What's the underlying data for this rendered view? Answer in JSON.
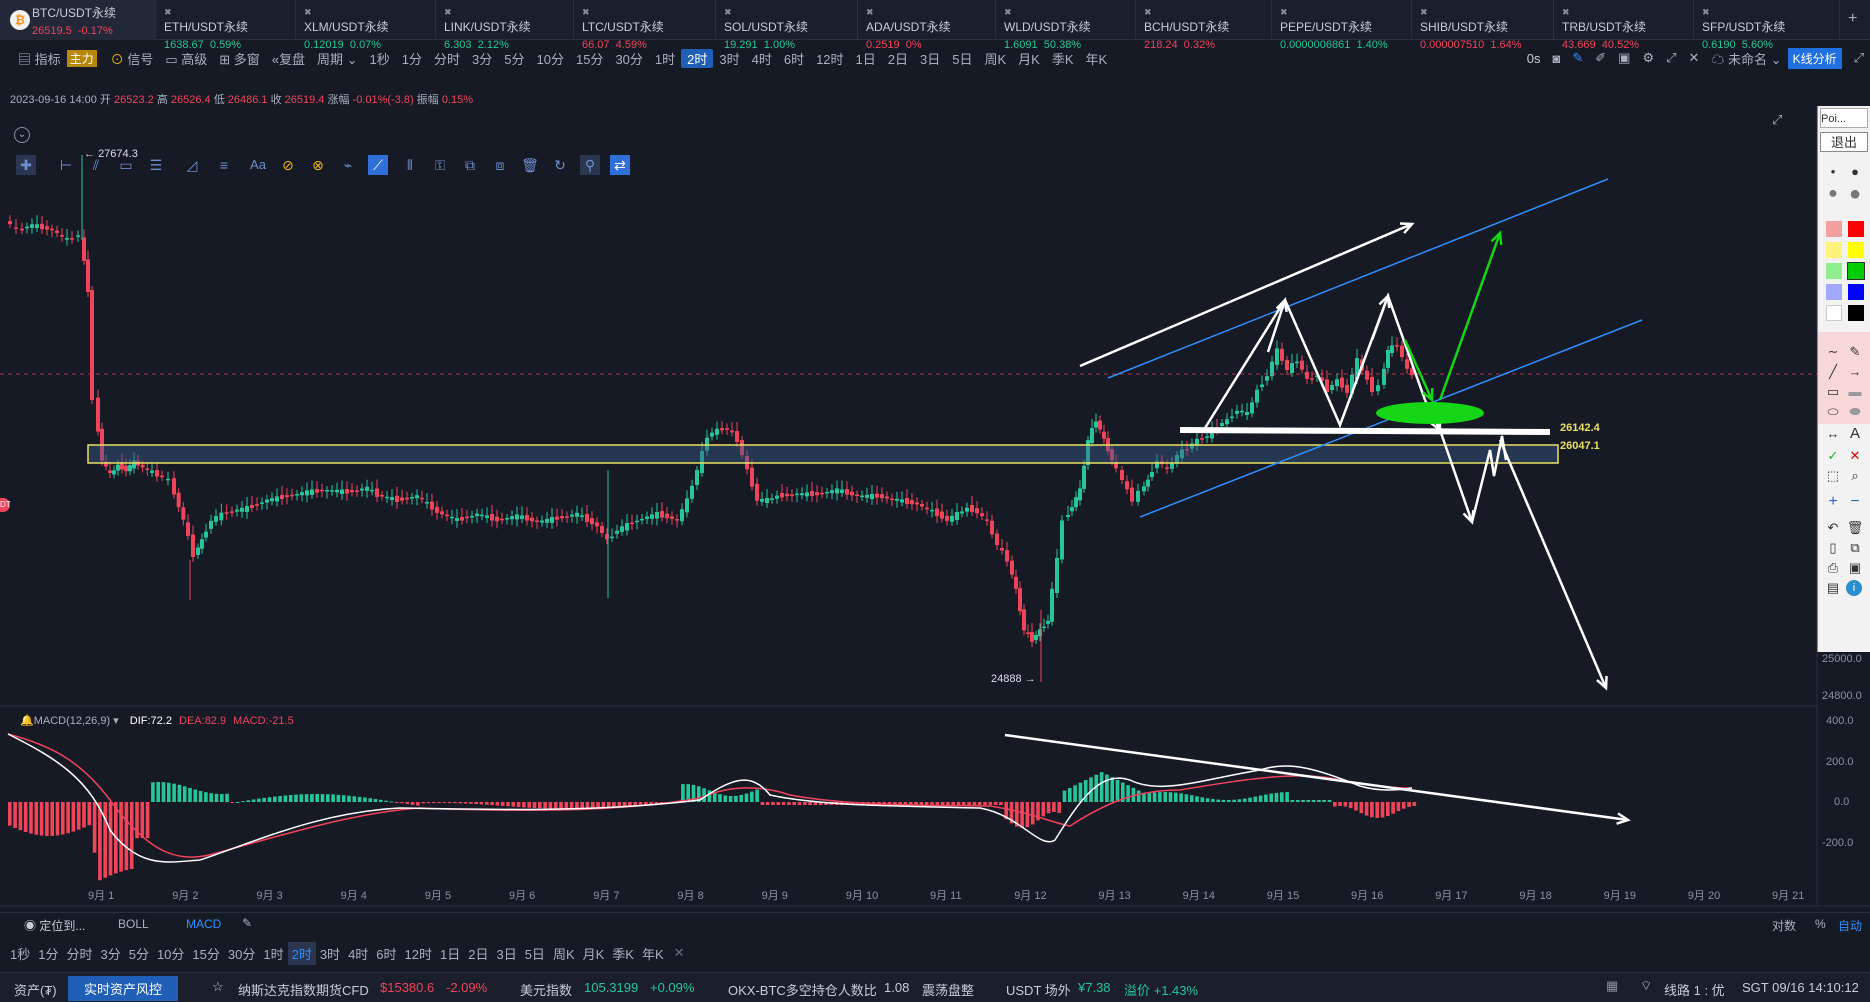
{
  "tickers": [
    {
      "sym": "BTC/USDT永续",
      "price": "26519.5",
      "chg": "-0.17%",
      "dir": "dn"
    },
    {
      "sym": "ETH/USDT永续",
      "price": "1638.67",
      "chg": "0.59%",
      "dir": "up"
    },
    {
      "sym": "XLM/USDT永续",
      "price": "0.12019",
      "chg": "0.07%",
      "dir": "up"
    },
    {
      "sym": "LINK/USDT永续",
      "price": "6.303",
      "chg": "2.12%",
      "dir": "up"
    },
    {
      "sym": "LTC/USDT永续",
      "price": "66.07",
      "chg": "4.59%",
      "dir": "dn"
    },
    {
      "sym": "SOL/USDT永续",
      "price": "19.291",
      "chg": "1.00%",
      "dir": "up"
    },
    {
      "sym": "ADA/USDT永续",
      "price": "0.2519",
      "chg": "0%",
      "dir": "dn"
    },
    {
      "sym": "WLD/USDT永续",
      "price": "1.6091",
      "chg": "50.38%",
      "dir": "up"
    },
    {
      "sym": "BCH/USDT永续",
      "price": "218.24",
      "chg": "0.32%",
      "dir": "dn"
    },
    {
      "sym": "PEPE/USDT永续",
      "price": "0.0000006861",
      "chg": "1.40%",
      "dir": "up"
    },
    {
      "sym": "SHIB/USDT永续",
      "price": "0.000007510",
      "chg": "1.64%",
      "dir": "dn"
    },
    {
      "sym": "TRB/USDT永续",
      "price": "43.669",
      "chg": "40.52%",
      "dir": "dn"
    },
    {
      "sym": "SFP/USDT永续",
      "price": "0.6190",
      "chg": "5.60%",
      "dir": "up"
    }
  ],
  "toolbar": {
    "indicator": "指标",
    "main": "主力",
    "signal": "信号",
    "advanced": "高级",
    "multi": "多窗",
    "replay": "复盘",
    "period": "周期",
    "intervals": [
      "1秒",
      "1分",
      "分时",
      "3分",
      "5分",
      "10分",
      "15分",
      "30分",
      "1时",
      "2时",
      "3时",
      "4时",
      "6时",
      "12时",
      "1日",
      "2日",
      "3日",
      "5日",
      "周K",
      "月K",
      "季K",
      "年K"
    ],
    "active_interval": "2时",
    "countdown": "0s",
    "layout_name": "未命名",
    "kline_btn": "K线分析"
  },
  "ohlc": {
    "date": "2023-09-16 14:00",
    "open_l": "开",
    "open": "26523.2",
    "high_l": "高",
    "high": "26526.4",
    "low_l": "低",
    "low": "26486.1",
    "close_l": "收",
    "close": "26519.4",
    "chg_l": "涨幅",
    "chg": "-0.01%(-3.8)",
    "amp_l": "振幅",
    "amp": "0.15%"
  },
  "chart": {
    "high_marker": "27674.3",
    "low_marker": "24888",
    "level1": "26142.4",
    "level2": "26047.1",
    "y_ticks": [
      "25000.0",
      "24800.0"
    ],
    "macd_label": "MACD(12,26,9)",
    "dif": "DIF:72.2",
    "dea": "DEA:82.9",
    "macd": "MACD:-21.5",
    "macd_ticks": [
      "400.0",
      "200.0",
      "0.0",
      "-200.0"
    ],
    "x_ticks": [
      "9月 1",
      "9月 2",
      "9月 3",
      "9月 4",
      "9月 5",
      "9月 6",
      "9月 7",
      "9月 8",
      "9月 9",
      "9月 10",
      "9月 11",
      "9月 12",
      "9月 13",
      "9月 14",
      "9月 15",
      "9月 16",
      "9月 17",
      "9月 18",
      "9月 19",
      "9月 20",
      "9月 21"
    ],
    "colors": {
      "up": "#26c59a",
      "down": "#f0445b",
      "channel": "#2f8fff",
      "band": "#e8e060"
    }
  },
  "footer": {
    "locate": "定位到...",
    "boll": "BOLL",
    "macd": "MACD",
    "log": "对数",
    "pct": "%",
    "auto": "自动"
  },
  "status": {
    "assets": "资产(₮)",
    "risk": "实时资产风控",
    "nas_l": "纳斯达克指数期货CFD",
    "nas": "$15380.6",
    "nas_c": "-2.09%",
    "usd_l": "美元指数",
    "usd": "105.3199",
    "usd_c": "+0.09%",
    "okx": "OKX-BTC多空持仓人数比",
    "okx_v": "1.08",
    "okx_s": "震荡盘整",
    "otc_l": "USDT 场外",
    "otc": "¥7.38",
    "prem": "溢价 +1.43%",
    "line": "线路 1 : 优",
    "time": "SGT 09/16 14:10:12"
  },
  "panel": {
    "title": "Poi...",
    "exit": "退出"
  }
}
